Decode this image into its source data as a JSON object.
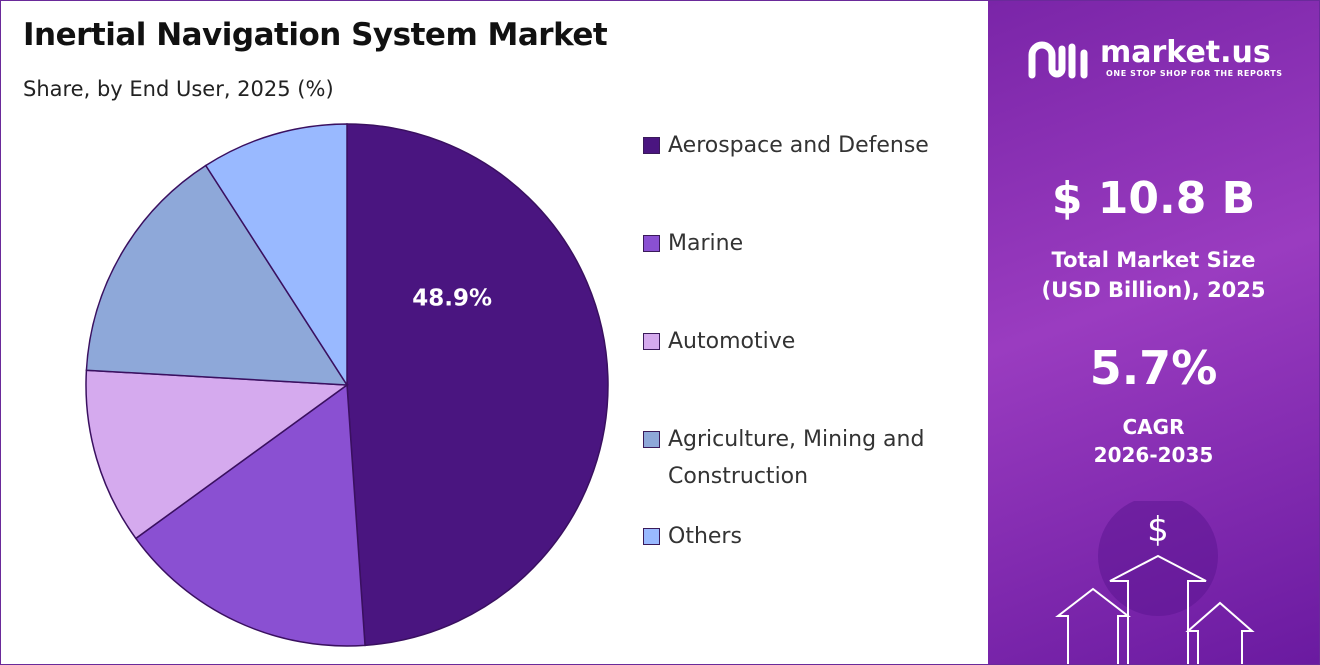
{
  "chart_data": {
    "type": "pie",
    "title": "Inertial Navigation System Market",
    "subtitle": "Share, by End User, 2025 (%)",
    "categories": [
      "Aerospace and Defense",
      "Marine",
      "Automotive",
      "Agriculture, Mining and Construction",
      "Others"
    ],
    "values": [
      48.9,
      16.1,
      10.9,
      15.0,
      9.1
    ],
    "value_labels": [
      "48.9%",
      null,
      null,
      null,
      null
    ],
    "colors": [
      "#4a1580",
      "#8a50d2",
      "#d5aaee",
      "#8ea8d9",
      "#99b9ff"
    ]
  },
  "panel": {
    "brand": "market.us",
    "tagline": "ONE STOP SHOP FOR THE REPORTS",
    "market_size": "$ 10.8 B",
    "market_size_label": "Total Market Size (USD Billion), 2025",
    "cagr": "5.7%",
    "cagr_label": "CAGR",
    "cagr_period": "2026-2035"
  }
}
